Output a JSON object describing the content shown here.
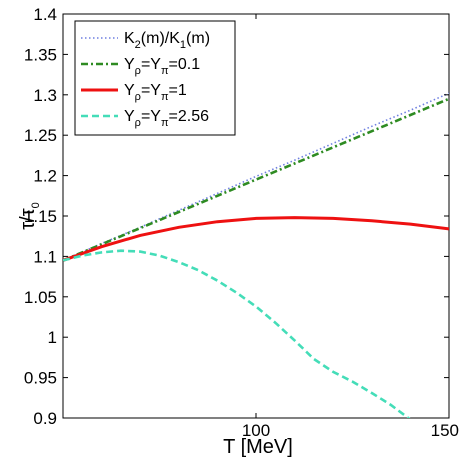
{
  "chart_data": {
    "type": "line",
    "xlabel": "T [MeV]",
    "ylabel": "τ/τ0",
    "ylabel_main": "τ/τ",
    "ylabel_sub": "0",
    "xlim": [
      50,
      150
    ],
    "ylim": [
      0.9,
      1.4
    ],
    "xticks": [
      100,
      150
    ],
    "xtick_labels": [
      "100",
      "150"
    ],
    "yticks": [
      0.9,
      0.95,
      1.0,
      1.05,
      1.1,
      1.15,
      1.2,
      1.25,
      1.3,
      1.35,
      1.4
    ],
    "ytick_labels": [
      "0.9",
      "0.95",
      "1",
      "1.05",
      "1.1",
      "1.15",
      "1.2",
      "1.25",
      "1.3",
      "1.35",
      "1.4"
    ],
    "grid": false,
    "legend_position": "top-left",
    "series": [
      {
        "name": "K2(m)/K1(m)",
        "legend_parts": [
          [
            "K",
            ""
          ],
          [
            "2",
            "sub"
          ],
          [
            "(m)/K",
            ""
          ],
          [
            "1",
            "sub"
          ],
          [
            "(m)",
            ""
          ]
        ],
        "color": "#6e7fe0",
        "style": "dotted",
        "x": [
          50,
          60,
          70,
          80,
          90,
          100,
          110,
          120,
          130,
          140,
          150
        ],
        "y": [
          1.095,
          1.116,
          1.136,
          1.157,
          1.178,
          1.199,
          1.219,
          1.24,
          1.261,
          1.281,
          1.302
        ]
      },
      {
        "name": "Υρ=Υπ=0.1",
        "legend_parts": [
          [
            "Υ",
            ""
          ],
          [
            "ρ",
            "sub"
          ],
          [
            "=Υ",
            ""
          ],
          [
            "π",
            "sub"
          ],
          [
            "=0.1",
            ""
          ]
        ],
        "color": "#2e8b22",
        "style": "dashdot",
        "x": [
          50,
          60,
          70,
          80,
          90,
          100,
          110,
          120,
          130,
          140,
          150
        ],
        "y": [
          1.095,
          1.115,
          1.135,
          1.155,
          1.175,
          1.195,
          1.215,
          1.235,
          1.255,
          1.275,
          1.295
        ]
      },
      {
        "name": "Υρ=Υπ=1",
        "legend_parts": [
          [
            "Υ",
            ""
          ],
          [
            "ρ",
            "sub"
          ],
          [
            "=Υ",
            ""
          ],
          [
            "π",
            "sub"
          ],
          [
            "=1",
            ""
          ]
        ],
        "color": "#ee1111",
        "style": "solid",
        "x": [
          50,
          60,
          70,
          80,
          90,
          100,
          110,
          120,
          130,
          140,
          150
        ],
        "y": [
          1.095,
          1.112,
          1.126,
          1.136,
          1.143,
          1.147,
          1.148,
          1.147,
          1.144,
          1.14,
          1.134
        ]
      },
      {
        "name": "Υρ=Υπ=2.56",
        "legend_parts": [
          [
            "Υ",
            ""
          ],
          [
            "ρ",
            "sub"
          ],
          [
            "=Υ",
            ""
          ],
          [
            "π",
            "sub"
          ],
          [
            "=2.56",
            ""
          ]
        ],
        "color": "#44ddb8",
        "style": "dashed",
        "x": [
          50,
          55,
          60,
          65,
          70,
          75,
          80,
          85,
          90,
          95,
          100,
          105,
          110,
          115,
          120,
          125,
          130,
          135,
          140
        ],
        "y": [
          1.095,
          1.101,
          1.105,
          1.107,
          1.106,
          1.101,
          1.093,
          1.083,
          1.07,
          1.055,
          1.038,
          1.018,
          0.996,
          0.973,
          0.957,
          0.945,
          0.931,
          0.916,
          0.898
        ]
      }
    ]
  }
}
